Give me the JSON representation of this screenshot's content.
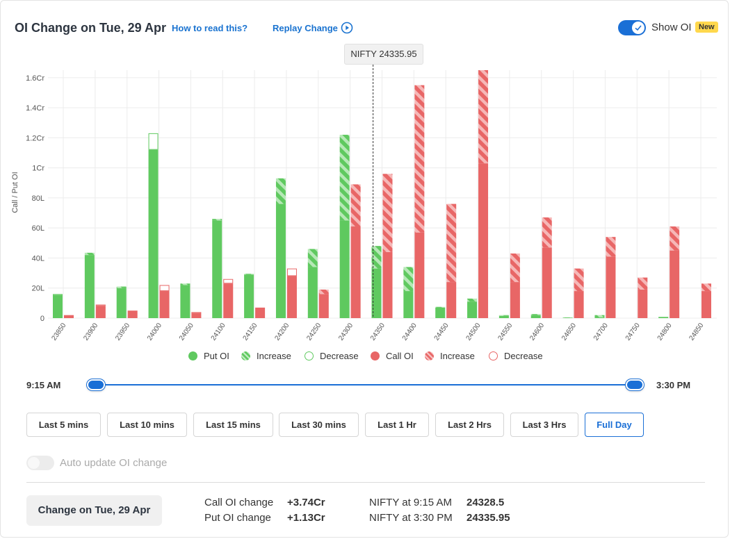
{
  "header": {
    "title": "OI Change on Tue, 29 Apr",
    "how_to_read": "How to read this?",
    "replay": "Replay Change",
    "show_oi_label": "Show OI",
    "new_badge": "New"
  },
  "tooltip": "NIFTY 24335.95",
  "colors": {
    "put": "#5fc95f",
    "put_light": "#a9e3a9",
    "call": "#e86666",
    "call_light": "#f4aaaa",
    "accent": "#1a6fd6"
  },
  "legend": {
    "put_oi": "Put OI",
    "put_increase": "Increase",
    "put_decrease": "Decrease",
    "call_oi": "Call OI",
    "call_increase": "Increase",
    "call_decrease": "Decrease"
  },
  "chart_data": {
    "type": "bar",
    "ylabel": "Call / Put OI",
    "yticks": [
      "0",
      "20L",
      "40L",
      "60L",
      "80L",
      "1Cr",
      "1.2Cr",
      "1.4Cr",
      "1.6Cr"
    ],
    "ylim": [
      0,
      165
    ],
    "units": "Lakh",
    "spot_marker": {
      "label": "NIFTY 24335.95",
      "value": 24335.95
    },
    "categories": [
      "23850",
      "23900",
      "23950",
      "24000",
      "24050",
      "24100",
      "24150",
      "24200",
      "24250",
      "24300",
      "24350",
      "24400",
      "24450",
      "24500",
      "24550",
      "24600",
      "24650",
      "24700",
      "24750",
      "24800",
      "24850"
    ],
    "series": [
      {
        "name": "Put OI",
        "base": [
          15,
          42,
          20,
          112,
          22,
          65,
          29,
          76,
          34,
          65,
          33,
          18,
          7,
          11,
          1.5,
          2,
          0.3,
          0.5,
          0,
          0.8,
          0
        ],
        "increase": [
          0,
          1.5,
          1,
          0,
          1,
          1,
          0.5,
          17,
          12,
          57,
          15,
          16,
          0.5,
          2,
          0.5,
          0.7,
          0.2,
          1.5,
          0,
          0,
          0
        ],
        "decrease": [
          1,
          0,
          0,
          11,
          0,
          0,
          0,
          0,
          0,
          0,
          0,
          0,
          0,
          0,
          0,
          0,
          0,
          0,
          0,
          0,
          0
        ]
      },
      {
        "name": "Call OI",
        "base": [
          2,
          8,
          5,
          18,
          3,
          23,
          7,
          28,
          16,
          61,
          44,
          57,
          24,
          103,
          24,
          47,
          18,
          41,
          19,
          45,
          18
        ],
        "increase": [
          0,
          0,
          0,
          0,
          0,
          0,
          0,
          0,
          3,
          28,
          52,
          98,
          52,
          62,
          19,
          20,
          15,
          13,
          8,
          16,
          5
        ],
        "decrease": [
          0,
          1,
          0,
          4,
          1,
          3,
          0,
          5,
          0,
          0,
          0,
          0,
          0,
          0,
          0,
          0,
          0,
          0,
          0,
          0,
          0
        ]
      }
    ],
    "grid": true
  },
  "slider": {
    "start": "9:15 AM",
    "end": "3:30 PM"
  },
  "ranges": [
    "Last 5 mins",
    "Last 10 mins",
    "Last 15 mins",
    "Last 30 mins",
    "Last 1 Hr",
    "Last 2 Hrs",
    "Last 3 Hrs",
    "Full Day"
  ],
  "active_range": "Full Day",
  "auto_update_label": "Auto update OI change",
  "summary": {
    "change_button": "Change on Tue, 29 Apr",
    "call_label": "Call OI change",
    "call_value": "+3.74Cr",
    "put_label": "Put OI change",
    "put_value": "+1.13Cr",
    "nifty_open_label": "NIFTY at 9:15 AM",
    "nifty_open_value": "24328.5",
    "nifty_close_label": "NIFTY at 3:30 PM",
    "nifty_close_value": "24335.95"
  }
}
